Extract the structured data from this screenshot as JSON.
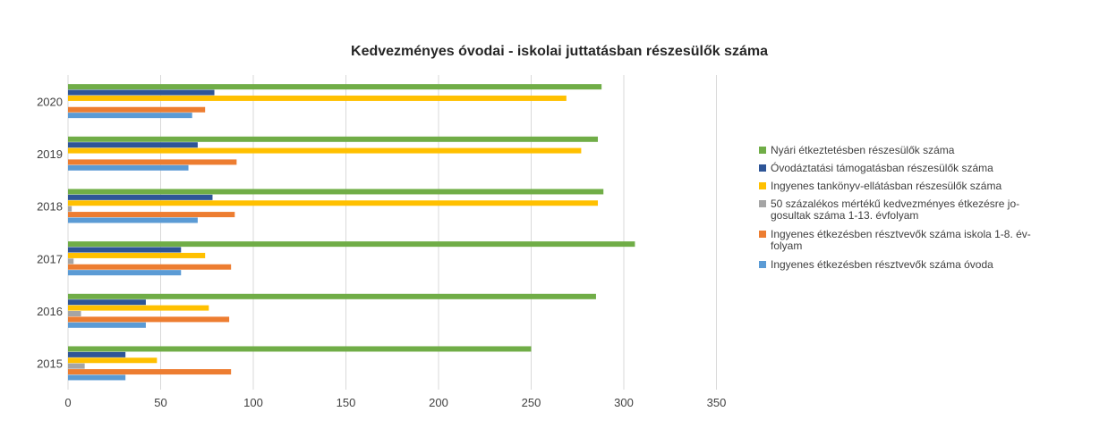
{
  "chart_data": {
    "type": "bar",
    "orientation": "horizontal",
    "title": "Kedvezményes óvodai - iskolai juttatásban részesülők száma",
    "xlabel": "",
    "ylabel": "",
    "xlim": [
      0,
      350
    ],
    "x_ticks": [
      "0",
      "50",
      "100",
      "150",
      "200",
      "250",
      "300",
      "350"
    ],
    "categories": [
      "2015",
      "2016",
      "2017",
      "2018",
      "2019",
      "2020"
    ],
    "grid": true,
    "legend_position": "right",
    "series": [
      {
        "name": "Nyári étkeztetésben részesülők száma",
        "color": "#70AD47",
        "values": [
          250,
          285,
          306,
          289,
          286,
          288
        ]
      },
      {
        "name": "Óvodáztatási támogatásban részesülők száma",
        "color": "#2E5597",
        "values": [
          31,
          42,
          61,
          78,
          70,
          79
        ]
      },
      {
        "name": "Ingyenes tankönyv-ellátásban részesülők száma",
        "color": "#FFC000",
        "values": [
          48,
          76,
          74,
          286,
          277,
          269
        ]
      },
      {
        "name": "50 százalékos mértékű kedvezményes étkezésre jogosultak száma 1-13. évfolyam",
        "legend_lines": [
          "50 százalékos mértékű kedvezményes étkezésre jo-",
          "gosultak száma 1-13. évfolyam"
        ],
        "color": "#A5A5A5",
        "values": [
          9,
          7,
          3,
          2,
          0,
          0
        ]
      },
      {
        "name": "Ingyenes étkezésben résztvevők száma iskola 1-8. évfolyam",
        "legend_lines": [
          "Ingyenes étkezésben résztvevők száma iskola 1-8. év-",
          "folyam"
        ],
        "color": "#ED7D31",
        "values": [
          88,
          87,
          88,
          90,
          91,
          74
        ]
      },
      {
        "name": "Ingyenes étkezésben résztvevők száma óvoda",
        "color": "#5B9BD5",
        "values": [
          31,
          42,
          61,
          70,
          65,
          67
        ]
      }
    ]
  }
}
